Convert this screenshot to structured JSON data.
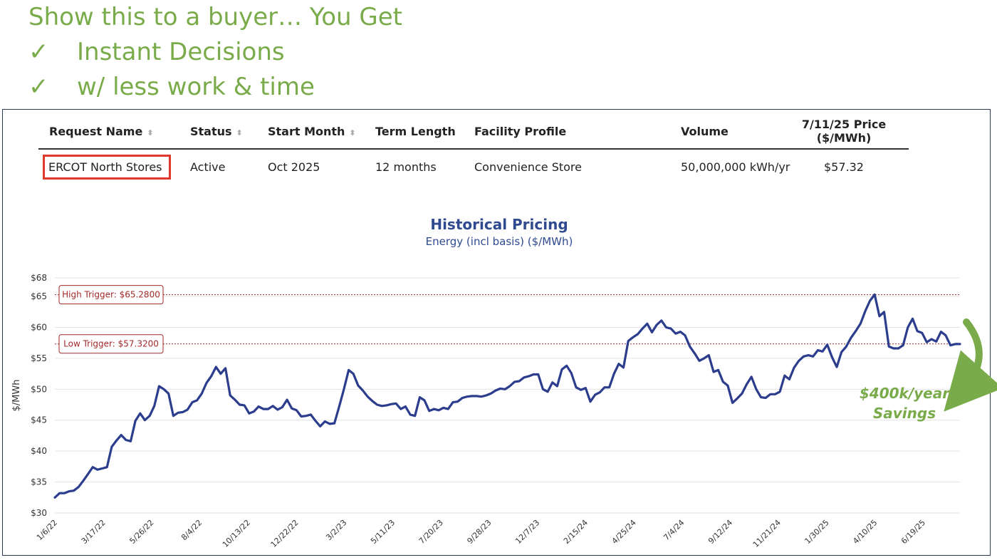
{
  "headline": {
    "title": "Show this to a buyer… You Get",
    "bullets": [
      {
        "icon": "check-icon",
        "text": "Instant Decisions"
      },
      {
        "icon": "check-icon",
        "text": "w/ less work & time"
      }
    ]
  },
  "table": {
    "headers": {
      "request_name": "Request Name",
      "status": "Status",
      "start_month": "Start Month",
      "term_length": "Term Length",
      "facility_profile": "Facility Profile",
      "volume": "Volume",
      "price_line1": "7/11/25 Price",
      "price_line2": "($/MWh)"
    },
    "row": {
      "request_name": "ERCOT North Stores",
      "status": "Active",
      "start_month": "Oct 2025",
      "term_length": "12 months",
      "facility_profile": "Convenience Store",
      "volume": "50,000,000 kWh/yr",
      "price": "$57.32"
    }
  },
  "annotation": {
    "savings_line1": "$400k/year",
    "savings_line2": "Savings",
    "accent": "#7aab4a",
    "highlight_color": "#e0382b"
  },
  "chart_data": {
    "type": "line",
    "title": "Historical Pricing",
    "subtitle": "Energy (incl basis) ($/MWh)",
    "ylabel": "$/MWh",
    "ylim": [
      30,
      68
    ],
    "yticks": [
      "$30",
      "$35",
      "$40",
      "$45",
      "$50",
      "$55",
      "$60",
      "$65",
      "$68"
    ],
    "ytick_values": [
      30,
      35,
      40,
      45,
      50,
      55,
      60,
      65,
      68
    ],
    "xtick_labels": [
      "1/6/22",
      "3/17/22",
      "5/26/22",
      "8/4/22",
      "10/13/22",
      "12/22/22",
      "3/2/23",
      "5/11/23",
      "7/20/23",
      "9/28/23",
      "12/7/23",
      "2/15/24",
      "4/25/24",
      "7/4/24",
      "9/12/24",
      "11/21/24",
      "1/30/25",
      "4/10/25",
      "6/19/25"
    ],
    "grid": true,
    "line_color": "#2b3d8c",
    "reference_lines": [
      {
        "label": "High Trigger: $65.2800",
        "value": 65.28
      },
      {
        "label": "Low Trigger: $57.3200",
        "value": 57.32
      }
    ],
    "series": [
      {
        "values": [
          32.5,
          33.2,
          33.2,
          33.5,
          33.6,
          34.2,
          35.2,
          36.3,
          37.4,
          37.0,
          37.2,
          37.4,
          40.7,
          41.7,
          42.6,
          41.8,
          41.6,
          44.9,
          46.1,
          45.0,
          45.7,
          47.3,
          50.5,
          50.0,
          49.3,
          45.7,
          46.2,
          46.3,
          46.7,
          47.9,
          48.2,
          49.3,
          51.0,
          52.1,
          53.6,
          52.5,
          53.4,
          49.0,
          48.3,
          47.5,
          47.4,
          46.1,
          46.4,
          47.2,
          46.8,
          46.8,
          47.3,
          46.7,
          47.1,
          48.3,
          46.9,
          46.6,
          45.6,
          45.7,
          45.9,
          44.9,
          44.0,
          44.8,
          44.4,
          44.5,
          47.2,
          50.0,
          53.1,
          52.5,
          50.6,
          49.8,
          48.8,
          48.1,
          47.5,
          47.3,
          47.4,
          47.6,
          47.7,
          46.8,
          47.2,
          45.9,
          45.7,
          48.7,
          48.2,
          46.5,
          46.8,
          46.6,
          47.0,
          46.8,
          47.9,
          48.0,
          48.6,
          48.8,
          48.9,
          48.9,
          48.8,
          49.0,
          49.3,
          49.8,
          50.1,
          50.0,
          50.5,
          51.2,
          51.3,
          51.9,
          52.1,
          52.4,
          52.4,
          50.0,
          49.6,
          51.1,
          50.5,
          53.2,
          53.8,
          52.6,
          50.3,
          49.9,
          50.2,
          48.0,
          49.1,
          49.5,
          50.3,
          50.3,
          52.5,
          54.1,
          53.5,
          57.8,
          58.4,
          58.9,
          59.8,
          60.6,
          59.2,
          60.4,
          61.1,
          60.0,
          59.8,
          59.0,
          59.3,
          58.7,
          56.9,
          55.8,
          54.6,
          55.0,
          55.5,
          52.8,
          53.1,
          51.2,
          50.6,
          47.8,
          48.5,
          49.3,
          50.8,
          52.0,
          50.0,
          48.7,
          48.6,
          49.2,
          49.2,
          49.6,
          52.2,
          51.6,
          53.5,
          54.6,
          55.3,
          55.5,
          55.3,
          56.3,
          56.1,
          57.2,
          55.2,
          53.6,
          56.0,
          56.9,
          58.3,
          59.4,
          60.6,
          62.6,
          64.3,
          65.3,
          61.8,
          62.5,
          56.9,
          56.6,
          56.6,
          57.1,
          60.0,
          61.4,
          59.4,
          59.1,
          57.6,
          58.1,
          57.7,
          59.3,
          58.7,
          57.1,
          57.3,
          57.3
        ]
      }
    ]
  }
}
